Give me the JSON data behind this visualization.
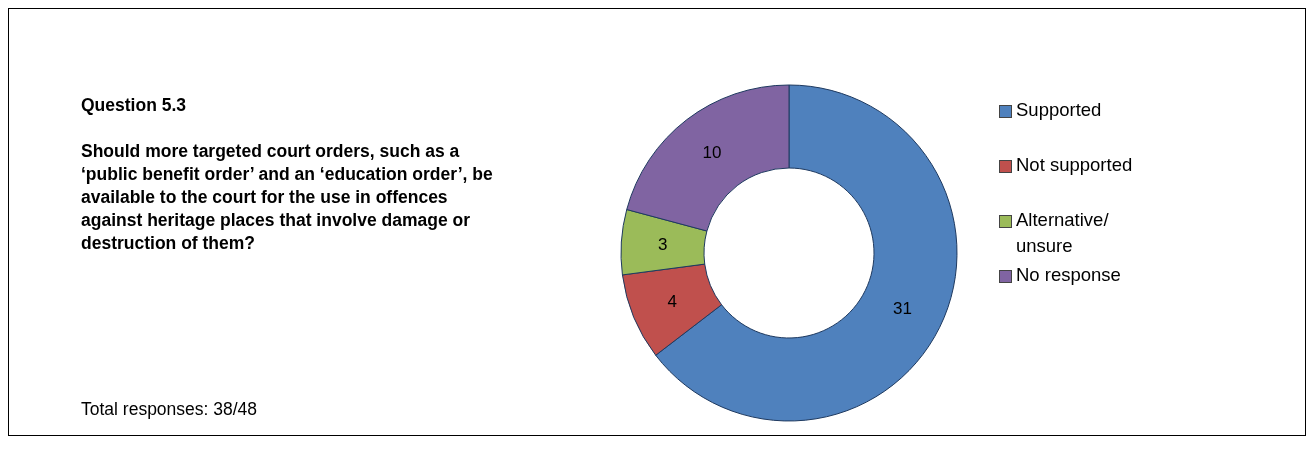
{
  "chart_data": {
    "type": "donut",
    "title": "Question 5.3",
    "subtitle": "Should more targeted court orders, such as a ‘public benefit order’ and an ‘education order’, be available to the court for the use in offences against heritage places that involve damage or destruction of them?",
    "annotations": [
      "Total responses: 38/48"
    ],
    "categories": [
      "Supported",
      "Not supported",
      "Alternative/ unsure",
      "No response"
    ],
    "values": [
      31,
      4,
      3,
      10
    ],
    "colors": [
      "#4f81bd",
      "#c0504d",
      "#9bbb59",
      "#8064a2"
    ],
    "data_labels": true,
    "legend": "right"
  }
}
